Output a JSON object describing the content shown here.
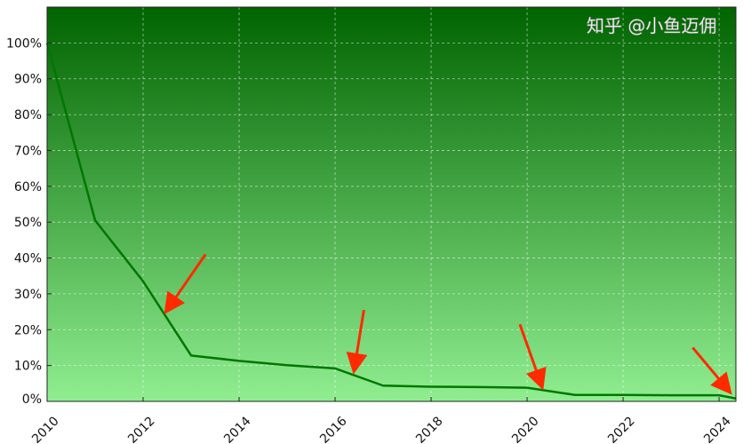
{
  "chart_data": {
    "type": "line",
    "title": "",
    "xlabel": "",
    "ylabel": "",
    "xlim": [
      2010,
      2024.35
    ],
    "ylim": [
      0,
      110
    ],
    "x_ticks": [
      "2010",
      "2012",
      "2014",
      "2016",
      "2018",
      "2020",
      "2022",
      "2024"
    ],
    "y_ticks": [
      "0%",
      "10%",
      "20%",
      "30%",
      "40%",
      "50%",
      "60%",
      "70%",
      "80%",
      "90%",
      "100%"
    ],
    "grid": true,
    "background": {
      "type": "vertical-gradient",
      "top": "#006400",
      "bottom": "#90EE90"
    },
    "series": [
      {
        "color": "#007700",
        "x": [
          2010,
          2011,
          2012,
          2013,
          2014,
          2015,
          2016,
          2017,
          2018,
          2019,
          2020,
          2021,
          2022,
          2023,
          2024,
          2024.35
        ],
        "y": [
          100,
          50.5,
          33.5,
          12.8,
          11.3,
          10.1,
          9.2,
          4.4,
          4.1,
          4.0,
          3.8,
          1.8,
          1.8,
          1.7,
          1.7,
          0.8
        ]
      }
    ],
    "annotations": [
      {
        "type": "arrow",
        "color": "#ff2a00",
        "from": [
          2013.3,
          41
        ],
        "to": [
          2012.5,
          25.5
        ]
      },
      {
        "type": "arrow",
        "color": "#ff2a00",
        "from": [
          2016.6,
          25.5
        ],
        "to": [
          2016.4,
          9
        ]
      },
      {
        "type": "arrow",
        "color": "#ff2a00",
        "from": [
          2019.85,
          21.5
        ],
        "to": [
          2020.3,
          4.5
        ]
      },
      {
        "type": "arrow",
        "color": "#ff2a00",
        "from": [
          2023.45,
          15
        ],
        "to": [
          2024.2,
          3
        ]
      }
    ]
  },
  "watermark": "知乎 @小鱼迈佣"
}
